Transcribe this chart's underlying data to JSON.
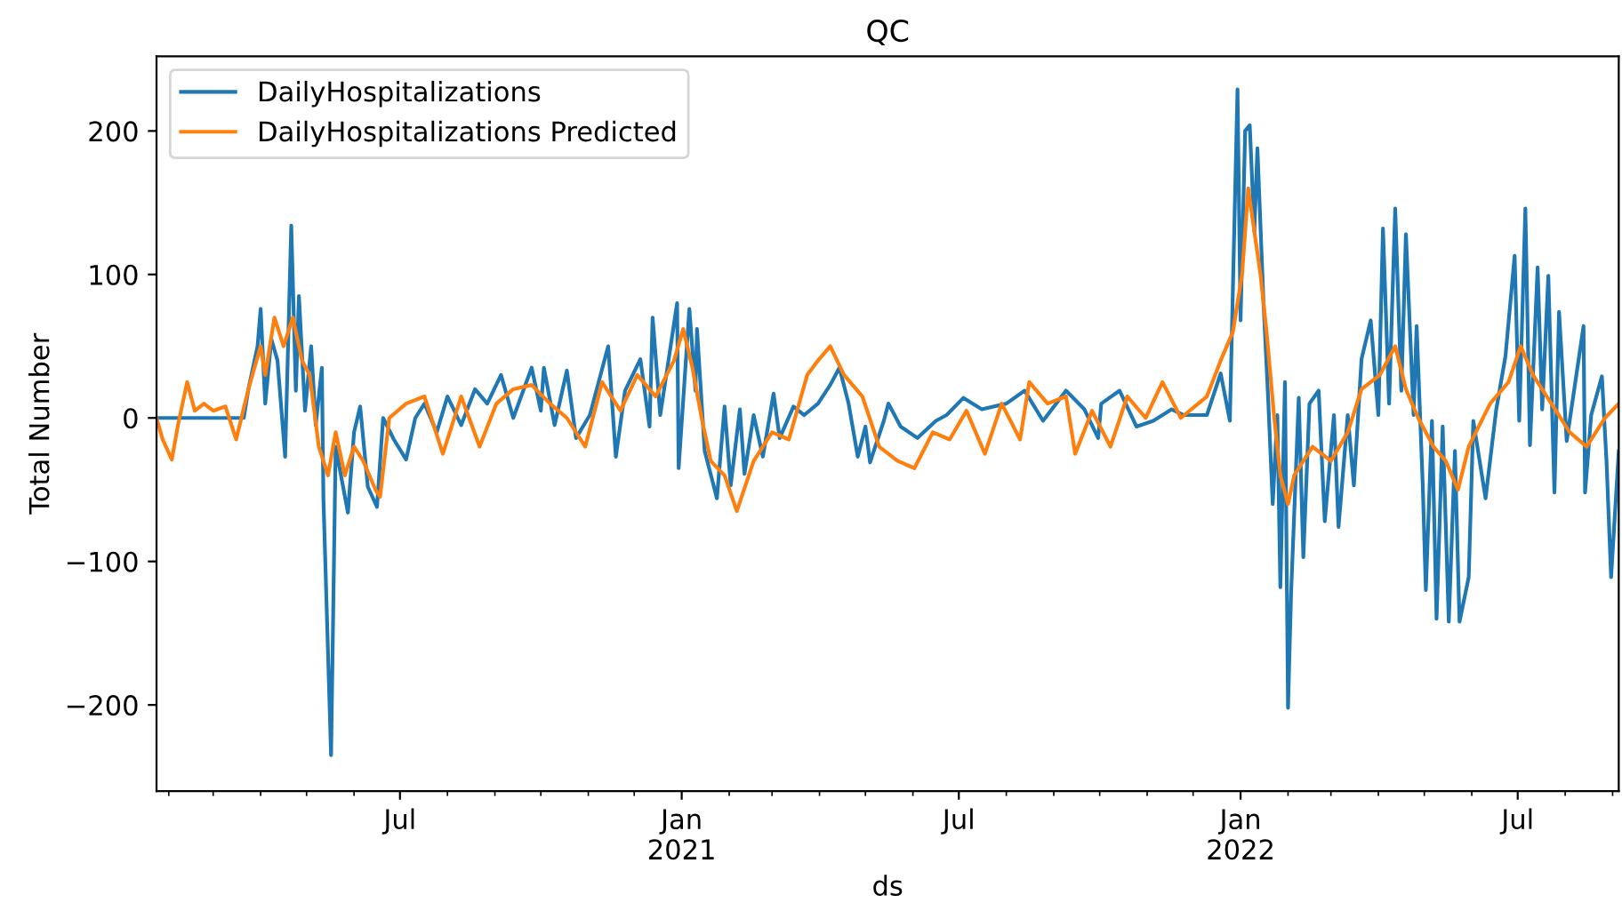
{
  "chart_data": {
    "type": "line",
    "title": "QC",
    "xlabel": "ds",
    "ylabel": "Total Number",
    "xlim": [
      "2020-01-24",
      "2022-09-05"
    ],
    "xticks": [
      {
        "value": "2020-02-01",
        "label": null
      },
      {
        "value": "2020-03-01",
        "label": null
      },
      {
        "value": "2020-04-01",
        "label": null
      },
      {
        "value": "2020-05-01",
        "label": null
      },
      {
        "value": "2020-06-01",
        "label": null
      },
      {
        "value": "2020-07-01",
        "label": "Jul"
      },
      {
        "value": "2020-08-01",
        "label": null
      },
      {
        "value": "2020-09-01",
        "label": null
      },
      {
        "value": "2020-10-01",
        "label": null
      },
      {
        "value": "2020-11-01",
        "label": null
      },
      {
        "value": "2020-12-01",
        "label": null
      },
      {
        "value": "2021-01-01",
        "label": "Jan\n2021"
      },
      {
        "value": "2021-02-01",
        "label": null
      },
      {
        "value": "2021-03-01",
        "label": null
      },
      {
        "value": "2021-04-01",
        "label": null
      },
      {
        "value": "2021-05-01",
        "label": null
      },
      {
        "value": "2021-06-01",
        "label": null
      },
      {
        "value": "2021-07-01",
        "label": "Jul"
      },
      {
        "value": "2021-08-01",
        "label": null
      },
      {
        "value": "2021-09-01",
        "label": null
      },
      {
        "value": "2021-10-01",
        "label": null
      },
      {
        "value": "2021-11-01",
        "label": null
      },
      {
        "value": "2021-12-01",
        "label": null
      },
      {
        "value": "2022-01-01",
        "label": "Jan\n2022"
      },
      {
        "value": "2022-02-01",
        "label": null
      },
      {
        "value": "2022-03-01",
        "label": null
      },
      {
        "value": "2022-04-01",
        "label": null
      },
      {
        "value": "2022-05-01",
        "label": null
      },
      {
        "value": "2022-06-01",
        "label": null
      },
      {
        "value": "2022-07-01",
        "label": "Jul"
      },
      {
        "value": "2022-08-01",
        "label": null
      },
      {
        "value": "2022-09-01",
        "label": null
      }
    ],
    "ylim": [
      -260,
      252
    ],
    "yticks": [
      {
        "value": -200,
        "label": "−200"
      },
      {
        "value": -100,
        "label": "−100"
      },
      0,
      100,
      200
    ],
    "grid": false,
    "legend": "top left",
    "marker": "none",
    "line_style": "solid",
    "series": [
      {
        "name": "DailyHospitalizations",
        "color": "#1f77b4",
        "x": [
          "2020-01-24",
          "2020-03-21",
          "2020-03-24",
          "2020-03-30",
          "2020-04-01",
          "2020-04-04",
          "2020-04-08",
          "2020-04-12",
          "2020-04-17",
          "2020-04-21",
          "2020-04-24",
          "2020-04-26",
          "2020-04-30",
          "2020-05-04",
          "2020-05-07",
          "2020-05-11",
          "2020-05-12",
          "2020-05-17",
          "2020-05-20",
          "2020-05-28",
          "2020-06-01",
          "2020-06-05",
          "2020-06-10",
          "2020-06-16",
          "2020-06-20",
          "2020-06-27",
          "2020-07-05",
          "2020-07-11",
          "2020-07-17",
          "2020-07-25",
          "2020-08-01",
          "2020-08-10",
          "2020-08-19",
          "2020-08-27",
          "2020-09-05",
          "2020-09-13",
          "2020-09-25",
          "2020-10-01",
          "2020-10-03",
          "2020-10-10",
          "2020-10-18",
          "2020-10-24",
          "2020-11-02",
          "2020-11-14",
          "2020-11-19",
          "2020-11-25",
          "2020-12-05",
          "2020-12-11",
          "2020-12-13",
          "2020-12-18",
          "2020-12-29",
          "2020-12-30",
          "2021-01-06",
          "2021-01-10",
          "2021-01-11",
          "2021-01-16",
          "2021-01-24",
          "2021-01-29",
          "2021-02-02",
          "2021-02-08",
          "2021-02-11",
          "2021-02-17",
          "2021-02-23",
          "2021-03-02",
          "2021-03-06",
          "2021-03-15",
          "2021-03-22",
          "2021-03-31",
          "2021-04-08",
          "2021-04-14",
          "2021-04-20",
          "2021-04-26",
          "2021-05-01",
          "2021-05-04",
          "2021-05-13",
          "2021-05-16",
          "2021-05-24",
          "2021-06-04",
          "2021-06-16",
          "2021-06-23",
          "2021-07-04",
          "2021-07-16",
          "2021-08-01",
          "2021-08-13",
          "2021-08-25",
          "2021-09-09",
          "2021-09-21",
          "2021-09-30",
          "2021-10-02",
          "2021-10-14",
          "2021-10-25",
          "2021-11-05",
          "2021-11-17",
          "2021-11-25",
          "2021-12-10",
          "2021-12-19",
          "2021-12-25",
          "2021-12-30",
          "2022-01-01",
          "2022-01-04",
          "2022-01-07",
          "2022-01-10",
          "2022-01-12",
          "2022-01-16",
          "2022-01-19",
          "2022-01-22",
          "2022-01-25",
          "2022-01-27",
          "2022-01-30",
          "2022-02-01",
          "2022-02-03",
          "2022-02-08",
          "2022-02-11",
          "2022-02-15",
          "2022-02-21",
          "2022-02-25",
          "2022-03-03",
          "2022-03-06",
          "2022-03-12",
          "2022-03-16",
          "2022-03-21",
          "2022-03-27",
          "2022-04-01",
          "2022-04-04",
          "2022-04-08",
          "2022-04-12",
          "2022-04-16",
          "2022-04-19",
          "2022-04-24",
          "2022-04-26",
          "2022-04-30",
          "2022-05-02",
          "2022-05-06",
          "2022-05-09",
          "2022-05-13",
          "2022-05-17",
          "2022-05-21",
          "2022-05-24",
          "2022-05-30",
          "2022-06-02",
          "2022-06-10",
          "2022-06-17",
          "2022-06-23",
          "2022-06-29",
          "2022-07-02",
          "2022-07-06",
          "2022-07-09",
          "2022-07-14",
          "2022-07-17",
          "2022-07-21",
          "2022-07-25",
          "2022-07-28",
          "2022-08-02",
          "2022-08-13",
          "2022-08-14",
          "2022-08-18",
          "2022-08-25",
          "2022-08-28",
          "2022-08-31",
          "2022-09-05"
        ],
        "values": [
          0,
          0,
          20,
          50,
          76,
          10,
          55,
          40,
          -27,
          134,
          19,
          85,
          5,
          50,
          -5,
          35,
          -56,
          -235,
          -20,
          -66,
          -10,
          8,
          -48,
          -62,
          0,
          -15,
          -29,
          0,
          10,
          -10,
          15,
          -5,
          20,
          10,
          30,
          0,
          35,
          5,
          35,
          -5,
          33,
          -14,
          2,
          50,
          -27,
          19,
          41,
          -6,
          70,
          2,
          80,
          -35,
          76,
          19,
          62,
          -23,
          -56,
          8,
          -47,
          6,
          -39,
          2,
          -27,
          17,
          -14,
          8,
          2,
          10,
          23,
          35,
          10,
          -27,
          -6,
          -31,
          -2,
          10,
          -6,
          -14,
          -2,
          2,
          14,
          6,
          10,
          19,
          -2,
          19,
          6,
          -14,
          10,
          19,
          -6,
          -2,
          6,
          2,
          2,
          31,
          -2,
          229,
          68,
          200,
          204,
          130,
          188,
          80,
          14,
          -60,
          2,
          -118,
          25,
          -202,
          -122,
          14,
          -97,
          10,
          19,
          -72,
          2,
          -76,
          2,
          -47,
          41,
          68,
          2,
          132,
          10,
          146,
          19,
          128,
          2,
          64,
          -47,
          -120,
          -2,
          -140,
          -6,
          -142,
          -23,
          -142,
          -111,
          -2,
          -56,
          6,
          43,
          113,
          -2,
          146,
          -19,
          105,
          6,
          99,
          -52,
          74,
          -16,
          64,
          -52,
          2,
          29,
          -30,
          -111,
          -23
        ]
      },
      {
        "name": "DailyHospitalizations Predicted",
        "color": "#ff7f0e",
        "x": [
          "2020-01-24",
          "2020-01-28",
          "2020-02-03",
          "2020-02-07",
          "2020-02-13",
          "2020-02-18",
          "2020-02-24",
          "2020-03-01",
          "2020-03-09",
          "2020-03-16",
          "2020-03-24",
          "2020-04-01",
          "2020-04-04",
          "2020-04-10",
          "2020-04-16",
          "2020-04-22",
          "2020-04-28",
          "2020-05-03",
          "2020-05-09",
          "2020-05-15",
          "2020-05-20",
          "2020-05-26",
          "2020-06-01",
          "2020-06-07",
          "2020-06-15",
          "2020-06-18",
          "2020-06-24",
          "2020-07-05",
          "2020-07-17",
          "2020-07-29",
          "2020-08-10",
          "2020-08-22",
          "2020-09-02",
          "2020-09-13",
          "2020-09-25",
          "2020-10-07",
          "2020-10-18",
          "2020-10-30",
          "2020-11-10",
          "2020-11-22",
          "2020-12-03",
          "2020-12-15",
          "2020-12-27",
          "2021-01-02",
          "2021-01-08",
          "2021-01-14",
          "2021-01-20",
          "2021-01-29",
          "2021-02-06",
          "2021-02-17",
          "2021-03-01",
          "2021-03-12",
          "2021-03-24",
          "2021-03-31",
          "2021-04-08",
          "2021-04-17",
          "2021-04-29",
          "2021-05-10",
          "2021-05-22",
          "2021-06-02",
          "2021-06-14",
          "2021-06-25",
          "2021-07-06",
          "2021-07-18",
          "2021-07-29",
          "2021-08-10",
          "2021-08-16",
          "2021-08-28",
          "2021-09-09",
          "2021-09-15",
          "2021-09-26",
          "2021-10-08",
          "2021-10-19",
          "2021-10-31",
          "2021-11-11",
          "2021-11-23",
          "2021-12-10",
          "2021-12-19",
          "2021-12-27",
          "2022-01-02",
          "2022-01-06",
          "2022-01-10",
          "2022-01-14",
          "2022-01-18",
          "2022-01-23",
          "2022-01-27",
          "2022-02-01",
          "2022-02-05",
          "2022-02-17",
          "2022-03-01",
          "2022-03-12",
          "2022-03-21",
          "2022-04-02",
          "2022-04-12",
          "2022-04-19",
          "2022-04-27",
          "2022-05-07",
          "2022-05-15",
          "2022-05-23",
          "2022-05-30",
          "2022-06-13",
          "2022-06-25",
          "2022-07-03",
          "2022-07-11",
          "2022-07-23",
          "2022-08-04",
          "2022-08-15",
          "2022-08-27",
          "2022-09-05"
        ],
        "values": [
          0,
          -15,
          -29,
          -5,
          25,
          5,
          10,
          5,
          8,
          -15,
          20,
          50,
          30,
          70,
          50,
          70,
          40,
          30,
          -20,
          -40,
          -10,
          -40,
          -20,
          -30,
          -50,
          -55,
          0,
          10,
          15,
          -25,
          15,
          -20,
          10,
          20,
          23,
          10,
          0,
          -20,
          25,
          5,
          30,
          15,
          40,
          62,
          35,
          0,
          -30,
          -40,
          -65,
          -30,
          -10,
          -15,
          30,
          40,
          50,
          30,
          15,
          -20,
          -30,
          -35,
          -10,
          -15,
          5,
          -25,
          10,
          -15,
          25,
          10,
          15,
          -25,
          5,
          -20,
          15,
          0,
          25,
          0,
          15,
          40,
          60,
          100,
          160,
          130,
          100,
          60,
          0,
          -40,
          -60,
          -40,
          -20,
          -30,
          -10,
          20,
          30,
          50,
          20,
          0,
          -20,
          -30,
          -50,
          -20,
          10,
          25,
          50,
          30,
          10,
          -10,
          -20,
          0,
          10
        ]
      }
    ]
  }
}
